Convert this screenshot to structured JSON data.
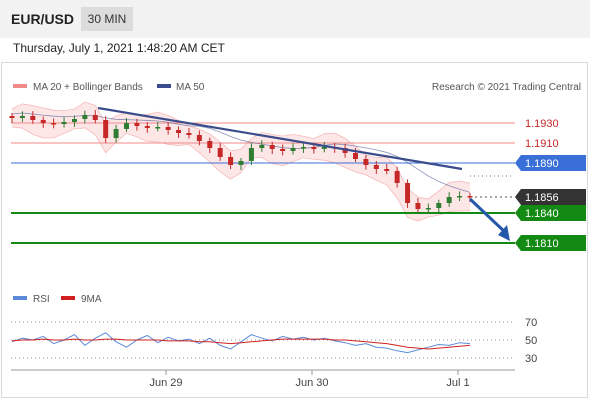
{
  "header": {
    "pair": "EUR/USD",
    "interval": "30 MIN"
  },
  "datetime": "Thursday, July 1, 2021 1:48:20 AM CET",
  "legend": {
    "bollinger_label": "MA 20 + Bollinger Bands",
    "ma50_label": "MA 50",
    "credit": "Research © 2021 Trading Central",
    "rsi_label": "RSI",
    "rsi_ma_label": "9MA"
  },
  "colors": {
    "bollinger": "#f08a8a",
    "bollinger_fill": "#fbdcdc",
    "ma50": "#3a4c8c",
    "resistance_red": "#e06060",
    "pivot_blue": "#3a6fd8",
    "support_green": "#138a13",
    "last_price_bg": "#333333",
    "candle_up": "#2e7d32",
    "candle_down": "#c62828",
    "rsi": "#5b8bd8",
    "rsi_ma": "#d22020",
    "forecast_arrow": "#2458a8"
  },
  "chart_data": {
    "type": "candlestick",
    "symbol": "EUR/USD",
    "timeframe": "30 MIN",
    "x_labels": [
      "Jun 29",
      "Jun 30",
      "Jul 1"
    ],
    "ylim": [
      1.1795,
      1.195
    ],
    "levels": [
      {
        "value": 1.193,
        "label": "1.1930",
        "kind": "resistance"
      },
      {
        "value": 1.191,
        "label": "1.1910",
        "kind": "resistance"
      },
      {
        "value": 1.189,
        "label": "1.1890",
        "kind": "pivot"
      },
      {
        "value": 1.1856,
        "label": "1.1856",
        "kind": "last"
      },
      {
        "value": 1.184,
        "label": "1.1840",
        "kind": "support"
      },
      {
        "value": 1.181,
        "label": "1.1810",
        "kind": "support"
      }
    ],
    "close_path": [
      1.1935,
      1.1937,
      1.1933,
      1.193,
      1.1929,
      1.1931,
      1.1934,
      1.1938,
      1.1933,
      1.1915,
      1.1924,
      1.193,
      1.1927,
      1.1925,
      1.1926,
      1.1923,
      1.192,
      1.1918,
      1.1912,
      1.1905,
      1.1896,
      1.1888,
      1.1892,
      1.1905,
      1.1908,
      1.1904,
      1.1902,
      1.1905,
      1.1906,
      1.1904,
      1.1906,
      1.1905,
      1.19,
      1.1894,
      1.1888,
      1.1884,
      1.1882,
      1.187,
      1.185,
      1.1844,
      1.1845,
      1.185,
      1.1856,
      1.1857,
      1.1856
    ],
    "trendline": {
      "from": 1.1938,
      "to": 1.189
    },
    "forecast_target": 1.181,
    "rsi": {
      "ticks": [
        "70",
        "50",
        "30"
      ],
      "values": [
        48,
        52,
        50,
        54,
        46,
        50,
        56,
        44,
        52,
        58,
        48,
        42,
        50,
        55,
        47,
        53,
        49,
        51,
        46,
        52,
        44,
        40,
        48,
        56,
        52,
        49,
        54,
        51,
        53,
        50,
        52,
        49,
        47,
        44,
        46,
        42,
        41,
        38,
        36,
        39,
        42,
        45,
        44,
        47,
        46
      ],
      "ma9": [
        49,
        50,
        50,
        51,
        50,
        50,
        51,
        50,
        50,
        51,
        51,
        50,
        50,
        50,
        50,
        49,
        49,
        49,
        48,
        48,
        47,
        46,
        47,
        48,
        49,
        50,
        51,
        51,
        51,
        51,
        51,
        50,
        50,
        49,
        48,
        47,
        46,
        44,
        42,
        41,
        40,
        41,
        42,
        43,
        44
      ]
    }
  }
}
